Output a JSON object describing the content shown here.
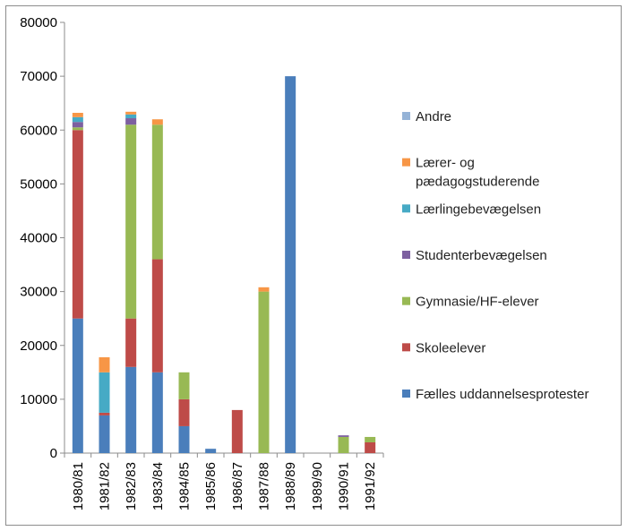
{
  "chart_data": {
    "type": "bar",
    "stacked": true,
    "categories": [
      "1980/81",
      "1981/82",
      "1982/83",
      "1983/84",
      "1984/85",
      "1985/86",
      "1986/87",
      "1987/88",
      "1988/89",
      "1989/90",
      "1990/91",
      "1991/92"
    ],
    "ylim": [
      0,
      80000
    ],
    "yticks": [
      0,
      10000,
      20000,
      30000,
      40000,
      50000,
      60000,
      70000,
      80000
    ],
    "ytick_labels": [
      "0",
      "10000",
      "20000",
      "30000",
      "40000",
      "50000",
      "60000",
      "70000",
      "80000"
    ],
    "grid": false,
    "legend_position": "right",
    "series": [
      {
        "name": "Fælles uddannelsesprotester",
        "color": "#4a7ebb",
        "values": [
          25000,
          7000,
          16000,
          15000,
          5000,
          800,
          0,
          0,
          70000,
          0,
          0,
          0
        ]
      },
      {
        "name": "Skoleelever",
        "color": "#be4b48",
        "values": [
          35000,
          500,
          9000,
          21000,
          5000,
          0,
          8000,
          0,
          0,
          0,
          0,
          2000
        ]
      },
      {
        "name": "Gymnasie/HF-elever",
        "color": "#98b954",
        "values": [
          500,
          0,
          36000,
          25000,
          5000,
          0,
          0,
          30000,
          0,
          0,
          3000,
          1000
        ]
      },
      {
        "name": "Studenterbevægelsen",
        "color": "#7d60a0",
        "values": [
          1000,
          0,
          1200,
          0,
          0,
          0,
          0,
          0,
          0,
          0,
          300,
          0
        ]
      },
      {
        "name": "Lærlingebevægelsen",
        "color": "#46aac5",
        "values": [
          900,
          7500,
          700,
          0,
          0,
          0,
          0,
          0,
          0,
          0,
          0,
          0
        ]
      },
      {
        "name": "Lærer- og pædagogstuderende",
        "color": "#f79646",
        "values": [
          800,
          2800,
          500,
          1000,
          0,
          0,
          0,
          800,
          0,
          0,
          0,
          0
        ]
      },
      {
        "name": "Andre",
        "color": "#95b3d7",
        "values": [
          0,
          0,
          0,
          0,
          0,
          0,
          0,
          0,
          0,
          0,
          0,
          0
        ]
      }
    ],
    "legend_order": [
      "Andre",
      "Lærer- og pædagogstuderende",
      "Lærlingebevægelsen",
      "Studenterbevægelsen",
      "Gymnasie/HF-elever",
      "Skoleelever",
      "Fælles uddannelsesprotester"
    ],
    "legend_lines": {
      "Lærer- og pædagogstuderende": [
        "Lærer- og",
        "pædagogstuderende"
      ]
    }
  }
}
